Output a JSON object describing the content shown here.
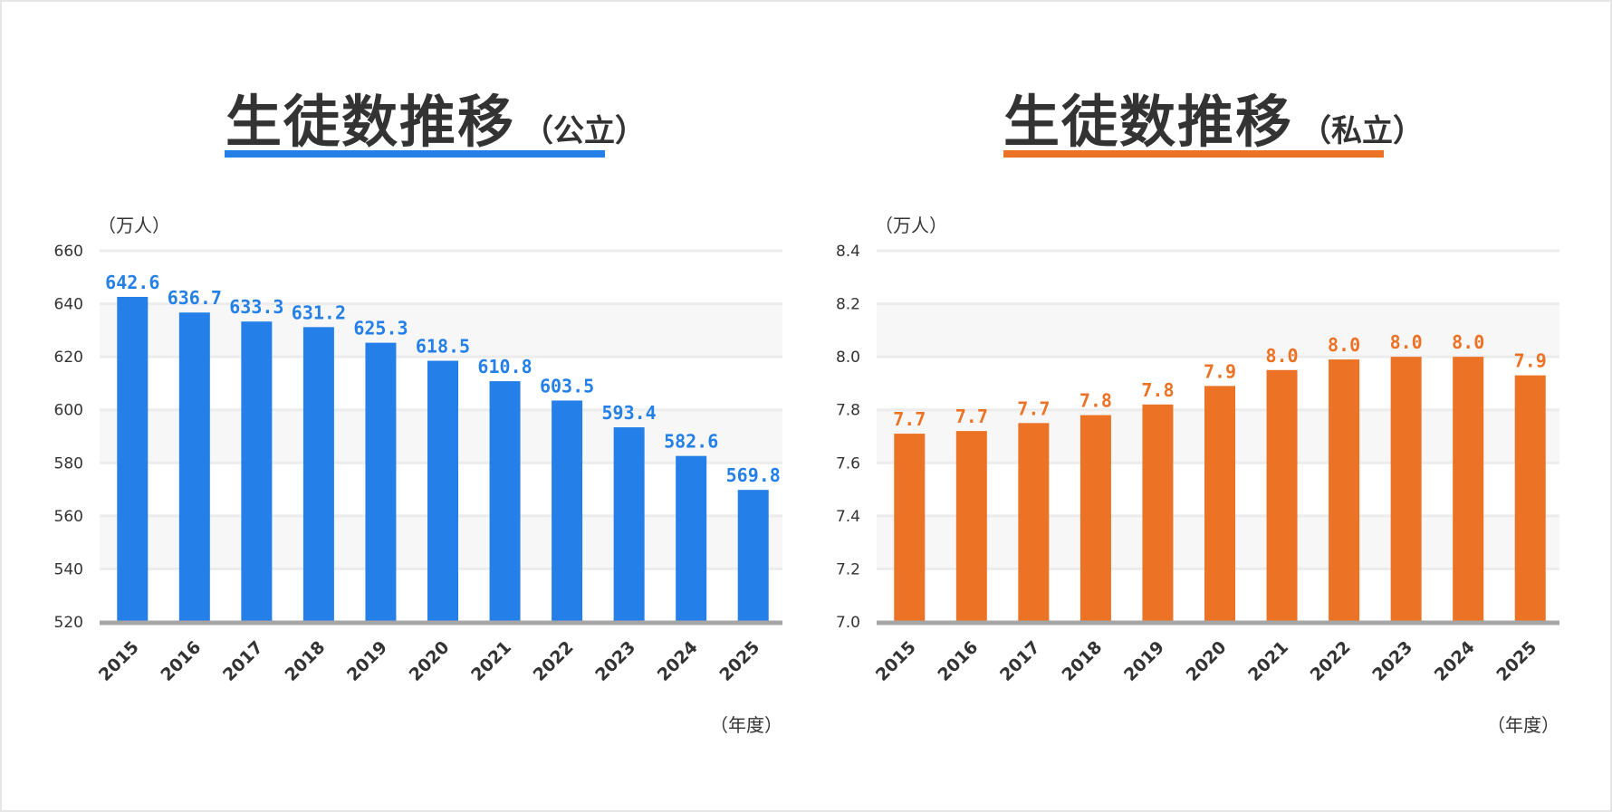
{
  "colors": {
    "public": "#2480e8",
    "private": "#ec7225",
    "grid": "#ececec",
    "band": "#f7f7f7",
    "axis": "#a6a6a6",
    "text": "#333333"
  },
  "chart_data": [
    {
      "type": "bar",
      "title": "生徒数推移",
      "subtitle": "（公立）",
      "ylabel": "（万人）",
      "xlabel": "（年度）",
      "ylim": [
        520,
        660
      ],
      "yticks": [
        "520",
        "540",
        "560",
        "580",
        "600",
        "620",
        "640",
        "660"
      ],
      "categories": [
        "2015",
        "2016",
        "2017",
        "2018",
        "2019",
        "2020",
        "2021",
        "2022",
        "2023",
        "2024",
        "2025"
      ],
      "values": [
        642.6,
        636.7,
        633.3,
        631.2,
        625.3,
        618.5,
        610.8,
        603.5,
        593.4,
        582.6,
        569.8
      ],
      "labels": [
        "642.6",
        "636.7",
        "633.3",
        "631.2",
        "625.3",
        "618.5",
        "610.8",
        "603.5",
        "593.4",
        "582.6",
        "569.8"
      ],
      "grid": true
    },
    {
      "type": "bar",
      "title": "生徒数推移",
      "subtitle": "（私立）",
      "ylabel": "（万人）",
      "xlabel": "（年度）",
      "ylim": [
        7.0,
        8.4
      ],
      "yticks": [
        "7.0",
        "7.2",
        "7.4",
        "7.6",
        "7.8",
        "8.0",
        "8.2",
        "8.4"
      ],
      "categories": [
        "2015",
        "2016",
        "2017",
        "2018",
        "2019",
        "2020",
        "2021",
        "2022",
        "2023",
        "2024",
        "2025"
      ],
      "values": [
        7.71,
        7.72,
        7.75,
        7.78,
        7.82,
        7.89,
        7.95,
        7.99,
        8.0,
        8.0,
        7.93
      ],
      "labels": [
        "7.7",
        "7.7",
        "7.7",
        "7.8",
        "7.8",
        "7.9",
        "8.0",
        "8.0",
        "8.0",
        "8.0",
        "7.9"
      ],
      "grid": true
    }
  ]
}
